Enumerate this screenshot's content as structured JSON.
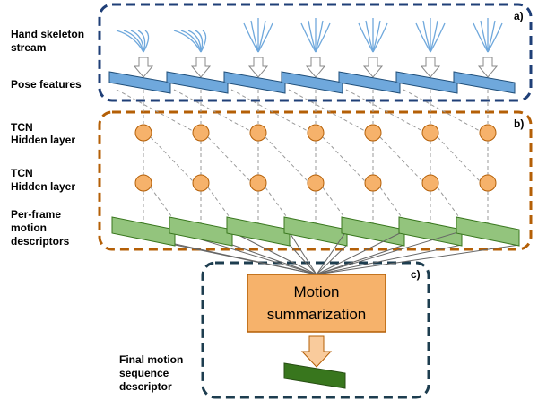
{
  "panels": {
    "a": "a)",
    "b": "b)",
    "c": "c)"
  },
  "labels": {
    "hand_skeleton": [
      "Hand skeleton",
      "stream"
    ],
    "pose_features": "Pose features",
    "tcn_1": [
      "TCN",
      "Hidden layer"
    ],
    "tcn_2": [
      "TCN",
      "Hidden layer"
    ],
    "per_frame": [
      "Per-frame",
      "motion",
      "descriptors"
    ],
    "final": [
      "Final motion",
      "sequence",
      "descriptor"
    ]
  },
  "summarization": [
    "Motion",
    "summarization"
  ]
}
